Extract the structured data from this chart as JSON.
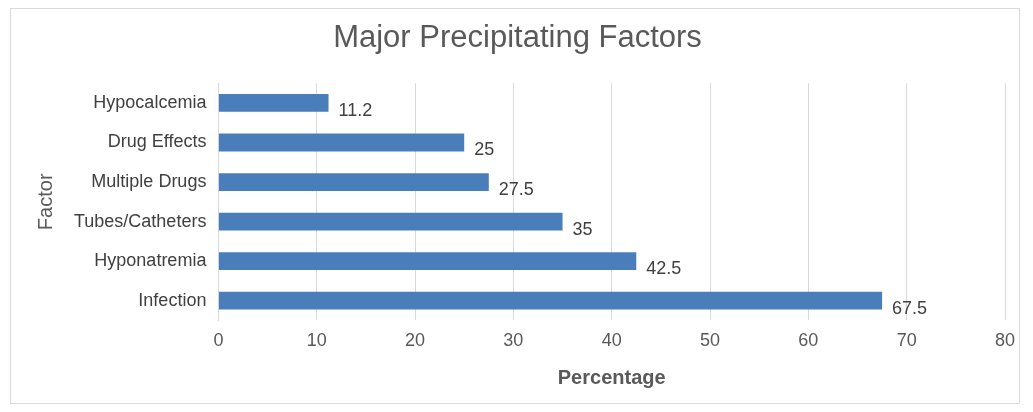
{
  "chart_data": {
    "type": "bar",
    "orientation": "horizontal",
    "title": "Major Precipitating Factors",
    "xlabel": "Percentage",
    "ylabel": "Factor",
    "categories": [
      "Hypocalcemia",
      "Drug Effects",
      "Multiple Drugs",
      "Tubes/Catheters",
      "Hyponatremia",
      "Infection"
    ],
    "values": [
      11.2,
      25,
      27.5,
      35,
      42.5,
      67.5
    ],
    "color": "#4a7ebb",
    "xlim": [
      0,
      80
    ],
    "xticks": [
      0,
      10,
      20,
      30,
      40,
      50,
      60,
      70,
      80
    ],
    "grid": "x",
    "data_labels": true,
    "legend": false
  }
}
